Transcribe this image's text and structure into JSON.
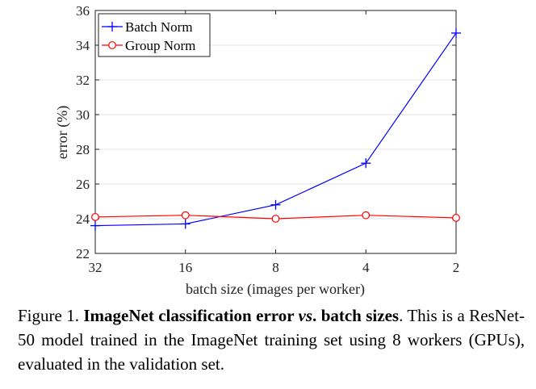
{
  "chart_data": {
    "type": "line",
    "categories": [
      "32",
      "16",
      "8",
      "4",
      "2"
    ],
    "series": [
      {
        "name": "Batch Norm",
        "values": [
          23.6,
          23.7,
          24.8,
          27.2,
          34.7
        ],
        "color": "#0000ff",
        "marker": "plus"
      },
      {
        "name": "Group Norm",
        "values": [
          24.1,
          24.2,
          24.0,
          24.2,
          24.05
        ],
        "color": "#ff0000",
        "marker": "circle"
      }
    ],
    "xlabel": "batch size (images per worker)",
    "ylabel": "error (%)",
    "ylim": [
      22,
      36
    ],
    "yticks": [
      22,
      24,
      26,
      28,
      30,
      32,
      34,
      36
    ],
    "grid": "horizontal",
    "legend": "top-left"
  },
  "caption": {
    "prefix": "Figure 1. ",
    "bold_title_part1": "ImageNet classification error ",
    "bold_italic": "vs",
    "bold_title_part2": ". batch sizes",
    "body": ". This is a ResNet-50 model trained in the ImageNet training set using 8 workers (GPUs), evaluated in the validation set."
  }
}
